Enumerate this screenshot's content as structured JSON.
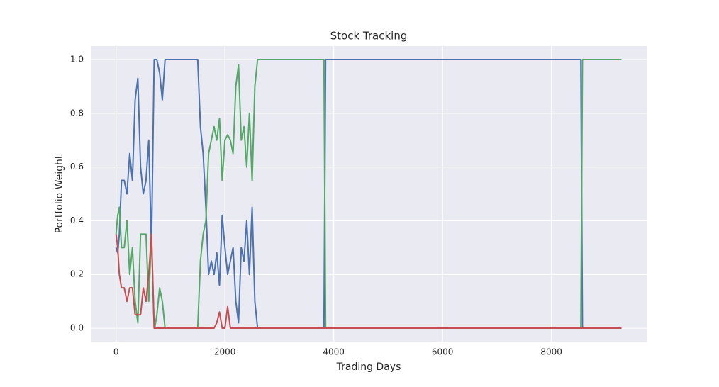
{
  "chart_data": {
    "type": "line",
    "title": "Stock Tracking",
    "x_label": "Trading Days",
    "y_label": "Portfolio Weight",
    "x": [
      0,
      30,
      60,
      100,
      150,
      200,
      250,
      300,
      350,
      400,
      450,
      500,
      550,
      600,
      650,
      700,
      710,
      750,
      800,
      850,
      900,
      950,
      1000,
      1200,
      1500,
      1550,
      1600,
      1650,
      1700,
      1750,
      1800,
      1850,
      1900,
      1950,
      2000,
      2050,
      2100,
      2150,
      2200,
      2250,
      2300,
      2350,
      2400,
      2450,
      2500,
      2550,
      2600,
      3820,
      3850,
      8540,
      8570,
      9287
    ],
    "series": [
      {
        "color": "#4c72b0",
        "values": [
          0.3,
          0.28,
          0.35,
          0.55,
          0.55,
          0.5,
          0.65,
          0.55,
          0.85,
          0.93,
          0.6,
          0.5,
          0.55,
          0.7,
          0.3,
          1.0,
          1.0,
          1.0,
          0.95,
          0.85,
          1.0,
          1.0,
          1.0,
          1.0,
          1.0,
          0.75,
          0.65,
          0.45,
          0.2,
          0.25,
          0.2,
          0.28,
          0.16,
          0.42,
          0.3,
          0.2,
          0.25,
          0.3,
          0.1,
          0.02,
          0.3,
          0.25,
          0.4,
          0.2,
          0.45,
          0.1,
          0.0,
          0.0,
          1.0,
          1.0,
          0.0,
          0.0
        ]
      },
      {
        "color": "#55a868",
        "values": [
          0.35,
          0.42,
          0.45,
          0.3,
          0.3,
          0.4,
          0.2,
          0.3,
          0.1,
          0.02,
          0.35,
          0.35,
          0.35,
          0.1,
          0.35,
          0.0,
          0.0,
          0.05,
          0.15,
          0.1,
          0.0,
          0.0,
          0.0,
          0.0,
          0.0,
          0.25,
          0.35,
          0.4,
          0.65,
          0.7,
          0.75,
          0.7,
          0.78,
          0.55,
          0.7,
          0.72,
          0.7,
          0.65,
          0.9,
          0.98,
          0.7,
          0.75,
          0.6,
          0.8,
          0.55,
          0.9,
          1.0,
          1.0,
          0.0,
          0.0,
          1.0,
          1.0
        ]
      },
      {
        "color": "#c44e52",
        "values": [
          0.35,
          0.3,
          0.2,
          0.15,
          0.15,
          0.1,
          0.15,
          0.15,
          0.05,
          0.05,
          0.05,
          0.15,
          0.1,
          0.2,
          0.35,
          0.0,
          0.0,
          0.0,
          0.0,
          0.0,
          0.0,
          0.0,
          0.0,
          0.0,
          0.0,
          0.0,
          0.0,
          0.0,
          0.0,
          0.0,
          0.0,
          0.02,
          0.06,
          0.0,
          0.0,
          0.08,
          0.0,
          0.0,
          0.0,
          0.0,
          0.0,
          0.0,
          0.0,
          0.0,
          0.0,
          0.0,
          0.0,
          0.0,
          0.0,
          0.0,
          0.0,
          0.0
        ]
      }
    ],
    "xlim": [
      -465,
      9750
    ],
    "xticks": [
      0,
      2000,
      4000,
      6000,
      8000
    ],
    "ylim": [
      -0.05,
      1.05
    ],
    "yticks": [
      {
        "value": 0,
        "label": "0.0"
      },
      {
        "value": 0.2,
        "label": "0.2"
      },
      {
        "value": 0.4,
        "label": "0.4"
      },
      {
        "value": 0.6,
        "label": "0.6"
      },
      {
        "value": 0.8,
        "label": "0.8"
      },
      {
        "value": 1,
        "label": "1.0"
      }
    ],
    "grid": true,
    "background": "#eaeaf2"
  }
}
